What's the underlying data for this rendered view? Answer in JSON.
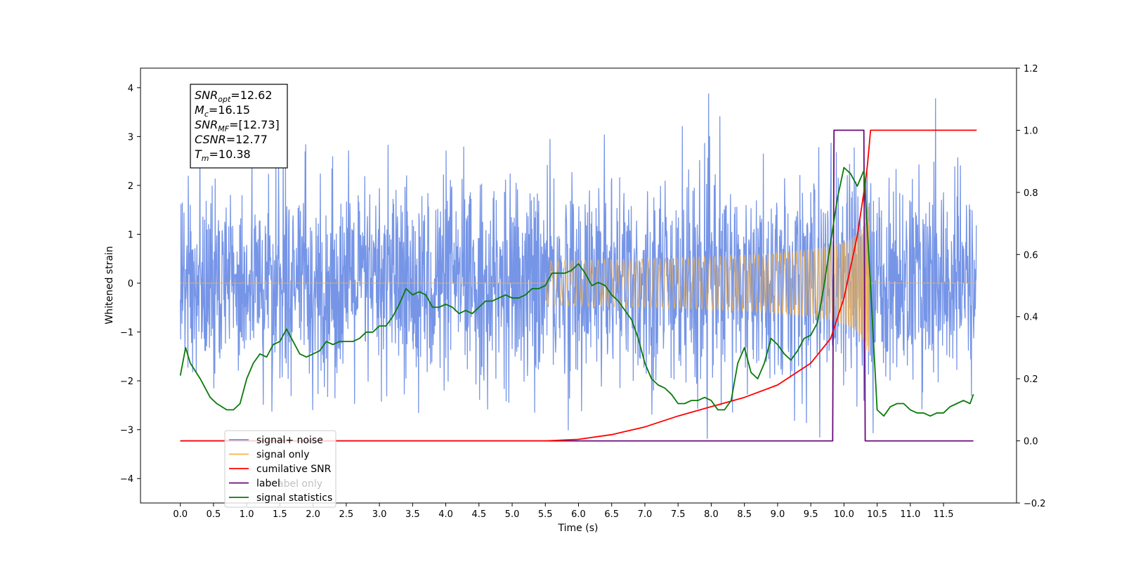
{
  "chart_data": {
    "type": "line",
    "xlabel": "Time (s)",
    "ylabel_left": "Whitened strain",
    "ylabel_right": "",
    "xlim": [
      -0.6,
      12.6
    ],
    "ylim_left": [
      -4.5,
      4.4
    ],
    "ylim_right": [
      -0.2,
      1.2
    ],
    "x_ticks": [
      "0.0",
      "0.5",
      "1.0",
      "1.5",
      "2.0",
      "2.5",
      "3.0",
      "3.5",
      "4.0",
      "4.5",
      "5.0",
      "5.5",
      "6.0",
      "6.5",
      "7.0",
      "7.5",
      "8.0",
      "8.5",
      "9.0",
      "9.5",
      "10.0",
      "10.5",
      "11.0",
      "11.5"
    ],
    "y_ticks_left": [
      "−4",
      "−3",
      "−2",
      "−1",
      "0",
      "1",
      "2",
      "3",
      "4"
    ],
    "y_ticks_right": [
      "−0.2",
      "0.0",
      "0.2",
      "0.4",
      "0.6",
      "0.8",
      "1.0",
      "1.2"
    ],
    "legend_position": "lower-left",
    "colors": {
      "noise": "#6f8fe6",
      "signal": "#f5b24a",
      "cumulative_snr": "#ff0000",
      "label": "#6a0a7a",
      "statistics": "#0a7a0a"
    },
    "series": [
      {
        "name": "signal+ noise",
        "axis": "left",
        "description_values": "random noise approx N(0,1), spikes up to ~3.9, t from 0.0 to 12.0"
      },
      {
        "name": "signal only",
        "axis": "left",
        "chirp_peak_time": 10.38,
        "peak_amplitude": 1.8
      },
      {
        "name": "cumilative SNR",
        "axis": "right",
        "x": [
          0.0,
          5.0,
          5.5,
          6.0,
          6.5,
          7.0,
          7.5,
          8.0,
          8.5,
          9.0,
          9.5,
          9.8,
          10.0,
          10.2,
          10.3,
          10.35,
          10.38,
          10.4,
          12.0
        ],
        "y": [
          0.0,
          0.0,
          0.0,
          0.005,
          0.02,
          0.045,
          0.08,
          0.11,
          0.14,
          0.18,
          0.25,
          0.33,
          0.46,
          0.66,
          0.8,
          0.88,
          0.95,
          1.0,
          1.0
        ]
      },
      {
        "name": "label",
        "axis": "right",
        "x": [
          0.0,
          9.83,
          9.85,
          10.3,
          10.32,
          11.95
        ],
        "y": [
          0.0,
          0.0,
          1.0,
          1.0,
          0.0,
          0.0
        ]
      },
      {
        "name": "signal statistics",
        "axis": "right",
        "x": [
          0.0,
          0.08,
          0.15,
          0.3,
          0.45,
          0.55,
          0.7,
          0.8,
          0.9,
          1.0,
          1.1,
          1.2,
          1.3,
          1.4,
          1.5,
          1.6,
          1.7,
          1.8,
          1.9,
          2.0,
          2.1,
          2.2,
          2.3,
          2.4,
          2.5,
          2.6,
          2.7,
          2.8,
          2.9,
          3.0,
          3.1,
          3.2,
          3.3,
          3.4,
          3.5,
          3.6,
          3.7,
          3.8,
          3.9,
          4.0,
          4.1,
          4.2,
          4.3,
          4.4,
          4.5,
          4.6,
          4.7,
          4.8,
          4.9,
          5.0,
          5.1,
          5.2,
          5.3,
          5.4,
          5.5,
          5.6,
          5.7,
          5.8,
          5.9,
          6.0,
          6.1,
          6.2,
          6.3,
          6.4,
          6.5,
          6.6,
          6.7,
          6.8,
          6.9,
          7.0,
          7.1,
          7.2,
          7.3,
          7.4,
          7.5,
          7.6,
          7.7,
          7.8,
          7.9,
          8.0,
          8.1,
          8.2,
          8.3,
          8.4,
          8.5,
          8.6,
          8.7,
          8.8,
          8.9,
          9.0,
          9.1,
          9.2,
          9.3,
          9.4,
          9.5,
          9.6,
          9.7,
          9.8,
          9.9,
          10.0,
          10.1,
          10.2,
          10.3,
          10.4,
          10.5,
          10.6,
          10.7,
          10.8,
          10.9,
          11.0,
          11.1,
          11.2,
          11.3,
          11.4,
          11.5,
          11.6,
          11.7,
          11.8,
          11.9,
          11.95
        ],
        "y": [
          0.21,
          0.3,
          0.25,
          0.2,
          0.14,
          0.12,
          0.1,
          0.1,
          0.12,
          0.2,
          0.25,
          0.28,
          0.27,
          0.31,
          0.32,
          0.36,
          0.32,
          0.28,
          0.27,
          0.28,
          0.29,
          0.32,
          0.31,
          0.32,
          0.32,
          0.32,
          0.33,
          0.35,
          0.35,
          0.37,
          0.37,
          0.4,
          0.44,
          0.49,
          0.47,
          0.48,
          0.47,
          0.43,
          0.43,
          0.44,
          0.43,
          0.41,
          0.42,
          0.41,
          0.43,
          0.45,
          0.45,
          0.46,
          0.47,
          0.46,
          0.46,
          0.47,
          0.49,
          0.49,
          0.5,
          0.54,
          0.54,
          0.54,
          0.55,
          0.57,
          0.54,
          0.5,
          0.51,
          0.5,
          0.47,
          0.45,
          0.42,
          0.39,
          0.33,
          0.25,
          0.2,
          0.18,
          0.17,
          0.15,
          0.12,
          0.12,
          0.13,
          0.13,
          0.14,
          0.13,
          0.1,
          0.1,
          0.13,
          0.25,
          0.3,
          0.22,
          0.2,
          0.25,
          0.33,
          0.31,
          0.28,
          0.26,
          0.29,
          0.33,
          0.34,
          0.38,
          0.5,
          0.64,
          0.78,
          0.88,
          0.86,
          0.82,
          0.87,
          0.5,
          0.1,
          0.08,
          0.11,
          0.12,
          0.12,
          0.1,
          0.09,
          0.09,
          0.08,
          0.09,
          0.09,
          0.11,
          0.12,
          0.13,
          0.12,
          0.15
        ]
      }
    ],
    "annotation_box": {
      "lines": [
        {
          "base": "SNR",
          "sub": "opt",
          "value": "=12.62"
        },
        {
          "base": "M",
          "sub": "c",
          "value": "=16.15"
        },
        {
          "base": "SNR",
          "sub": "MF",
          "value": "=[12.73]"
        },
        {
          "base": "CSNR",
          "sub": "",
          "value": "=12.77"
        },
        {
          "base": "T",
          "sub": "m",
          "value": "=10.38"
        }
      ]
    },
    "legend": [
      "signal+ noise",
      "signal only",
      "cumilative SNR",
      "label",
      "signal statistics"
    ],
    "legend_overlap_text": [
      "abel only"
    ]
  }
}
